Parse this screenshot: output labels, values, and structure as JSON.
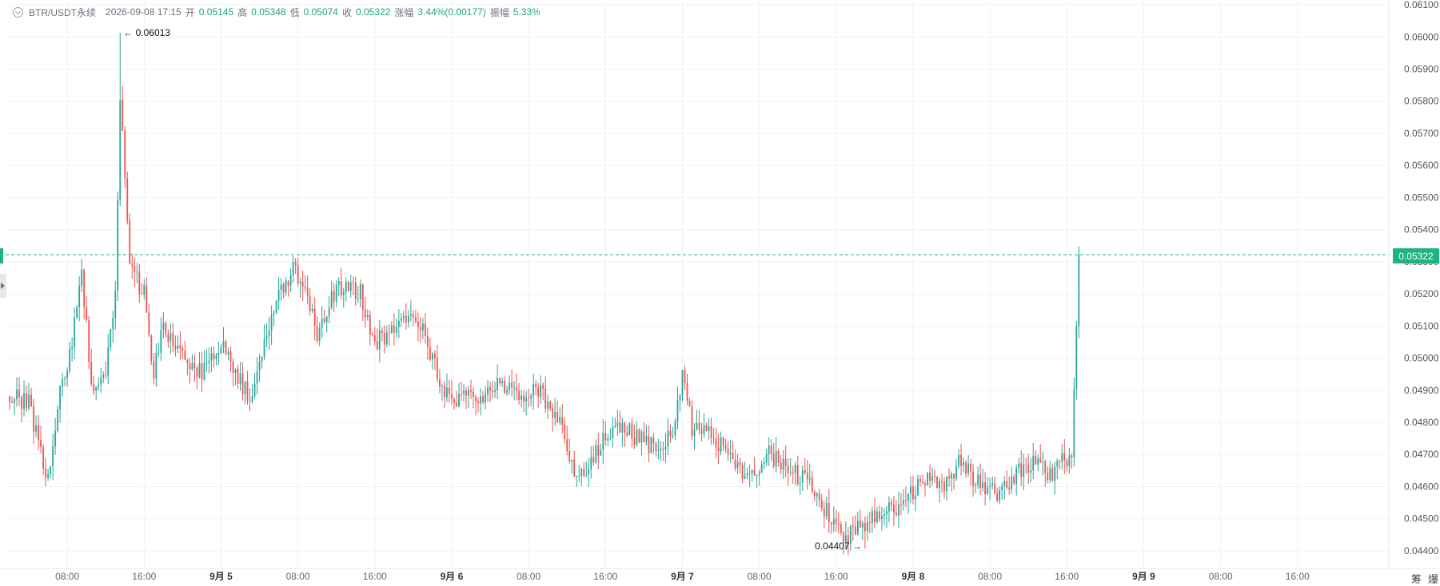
{
  "legend": {
    "symbol": "BTR/USDT永续",
    "datetime": "2026-09-08 17:15",
    "open_label": "开",
    "open": "0.05145",
    "high_label": "高",
    "high": "0.05348",
    "low_label": "低",
    "low": "0.05074",
    "close_label": "收",
    "close": "0.05322",
    "change_label": "涨幅",
    "change": "3.44%(0.00177)",
    "amplitude_label": "振幅",
    "amplitude": "5.33%"
  },
  "price_axis": {
    "labels": [
      "0.06100",
      "0.06000",
      "0.05900",
      "0.05800",
      "0.05700",
      "0.05600",
      "0.05500",
      "0.05400",
      "0.05300",
      "0.05200",
      "0.05100",
      "0.05000",
      "0.04900",
      "0.04800",
      "0.04700",
      "0.04600",
      "0.04500",
      "0.04400"
    ],
    "current_price": "0.05322"
  },
  "time_axis": {
    "labels": [
      "08:00",
      "16:00",
      "9月 5",
      "08:00",
      "16:00",
      "9月 6",
      "08:00",
      "16:00",
      "9月 7",
      "08:00",
      "16:00",
      "9月 8",
      "08:00",
      "16:00",
      "9月 9",
      "08:00",
      "16:00"
    ]
  },
  "annotations": {
    "high": "0.06013",
    "low": "0.04407"
  },
  "corner_tools": [
    "筹",
    "爆"
  ],
  "colors": {
    "up": "#26a69a",
    "down": "#ef5350",
    "accent": "#20b184",
    "grid": "#f1f2f4"
  },
  "chart_data": {
    "type": "candlestick",
    "symbol": "BTR/USDT永续",
    "interval": "15m",
    "ylim": [
      0.0437,
      0.0611
    ],
    "x_domain": [
      "2026-09-04 01:30",
      "2026-09-10 01:30"
    ],
    "current_price": 0.05322,
    "period_high": 0.06013,
    "period_low": 0.04407,
    "grid": true,
    "close_path": [
      [
        "2026-09-04 02:00",
        0.0488
      ],
      [
        "2026-09-04 04:00",
        0.0486
      ],
      [
        "2026-09-04 06:00",
        0.0462
      ],
      [
        "2026-09-04 07:00",
        0.0485
      ],
      [
        "2026-09-04 08:30",
        0.0505
      ],
      [
        "2026-09-04 09:30",
        0.0528
      ],
      [
        "2026-09-04 10:30",
        0.049
      ],
      [
        "2026-09-04 12:00",
        0.0495
      ],
      [
        "2026-09-04 13:00",
        0.0518
      ],
      [
        "2026-09-04 13:30",
        0.0583
      ],
      [
        "2026-09-04 14:30",
        0.0528
      ],
      [
        "2026-09-04 16:00",
        0.052
      ],
      [
        "2026-09-04 17:00",
        0.0495
      ],
      [
        "2026-09-04 18:00",
        0.051
      ],
      [
        "2026-09-04 20:00",
        0.05
      ],
      [
        "2026-09-04 22:00",
        0.0495
      ],
      [
        "2026-09-05 00:00",
        0.0505
      ],
      [
        "2026-09-05 01:30",
        0.0495
      ],
      [
        "2026-09-05 03:00",
        0.0488
      ],
      [
        "2026-09-05 04:30",
        0.0505
      ],
      [
        "2026-09-05 06:00",
        0.052
      ],
      [
        "2026-09-05 07:30",
        0.0528
      ],
      [
        "2026-09-05 09:00",
        0.052
      ],
      [
        "2026-09-05 10:00",
        0.0505
      ],
      [
        "2026-09-05 11:30",
        0.052
      ],
      [
        "2026-09-05 13:00",
        0.0522
      ],
      [
        "2026-09-05 14:30",
        0.052
      ],
      [
        "2026-09-05 16:00",
        0.0505
      ],
      [
        "2026-09-05 18:00",
        0.0508
      ],
      [
        "2026-09-05 19:30",
        0.0514
      ],
      [
        "2026-09-05 21:00",
        0.051
      ],
      [
        "2026-09-05 22:30",
        0.0495
      ],
      [
        "2026-09-06 00:00",
        0.0485
      ],
      [
        "2026-09-06 01:00",
        0.0488
      ],
      [
        "2026-09-06 03:00",
        0.0488
      ],
      [
        "2026-09-06 05:00",
        0.0492
      ],
      [
        "2026-09-06 07:00",
        0.0488
      ],
      [
        "2026-09-06 09:00",
        0.049
      ],
      [
        "2026-09-06 11:00",
        0.0482
      ],
      [
        "2026-09-06 13:00",
        0.0462
      ],
      [
        "2026-09-06 15:00",
        0.047
      ],
      [
        "2026-09-06 17:00",
        0.048
      ],
      [
        "2026-09-06 19:00",
        0.0476
      ],
      [
        "2026-09-06 21:00",
        0.0472
      ],
      [
        "2026-09-06 23:00",
        0.0476
      ],
      [
        "2026-09-07 00:00",
        0.0495
      ],
      [
        "2026-09-07 01:00",
        0.0478
      ],
      [
        "2026-09-07 03:00",
        0.0476
      ],
      [
        "2026-09-07 05:00",
        0.047
      ],
      [
        "2026-09-07 07:00",
        0.0462
      ],
      [
        "2026-09-07 09:00",
        0.047
      ],
      [
        "2026-09-07 11:00",
        0.0465
      ],
      [
        "2026-09-07 13:00",
        0.0462
      ],
      [
        "2026-09-07 15:00",
        0.0452
      ],
      [
        "2026-09-07 17:00",
        0.0444
      ],
      [
        "2026-09-07 19:00",
        0.0448
      ],
      [
        "2026-09-07 21:00",
        0.0452
      ],
      [
        "2026-09-07 23:00",
        0.0455
      ],
      [
        "2026-09-08 01:00",
        0.0462
      ],
      [
        "2026-09-08 03:00",
        0.046
      ],
      [
        "2026-09-08 05:00",
        0.0468
      ],
      [
        "2026-09-08 07:00",
        0.046
      ],
      [
        "2026-09-08 09:00",
        0.0458
      ],
      [
        "2026-09-08 11:00",
        0.0465
      ],
      [
        "2026-09-08 13:00",
        0.0468
      ],
      [
        "2026-09-08 14:30",
        0.0462
      ],
      [
        "2026-09-08 15:30",
        0.0468
      ],
      [
        "2026-09-08 16:30",
        0.047
      ],
      [
        "2026-09-08 17:00",
        0.051
      ],
      [
        "2026-09-08 17:15",
        0.05322
      ]
    ]
  }
}
